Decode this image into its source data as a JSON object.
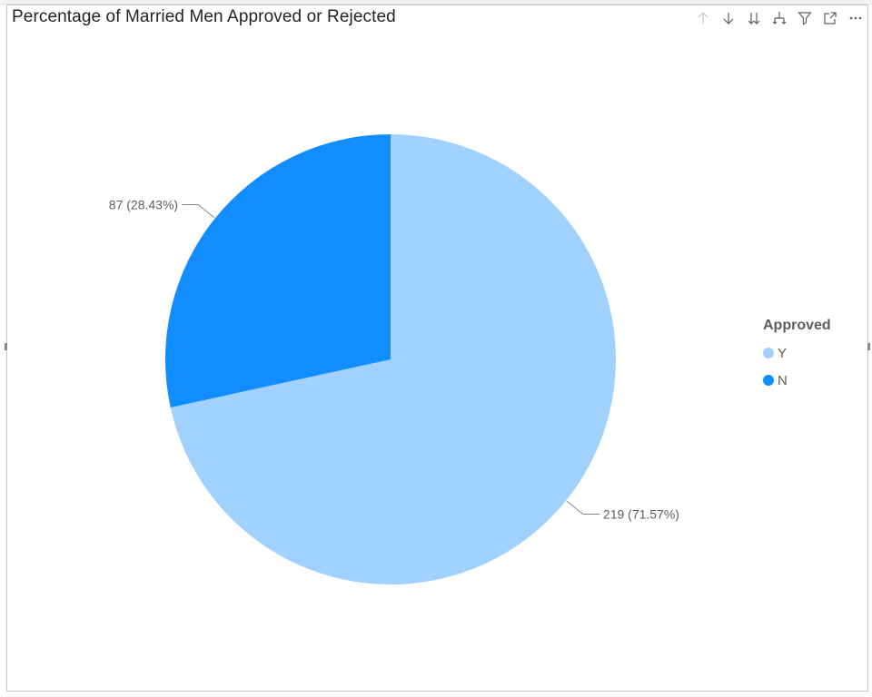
{
  "title": "Percentage of Married Men Approved or Rejected",
  "header_icons": [
    "drill-up-icon",
    "drill-down-icon",
    "expand-all-down-icon",
    "expand-hierarchy-icon",
    "filter-icon",
    "focus-mode-icon",
    "more-options-icon"
  ],
  "chart_data": {
    "type": "pie",
    "title": "Percentage of Married Men Approved or Rejected",
    "legend_title": "Approved",
    "legend_position": "right",
    "slices": [
      {
        "label": "Y",
        "value": 219,
        "percent": 71.57,
        "color": "#a0d1ff",
        "data_label": "219 (71.57%)"
      },
      {
        "label": "N",
        "value": 87,
        "percent": 28.43,
        "color": "#118dff",
        "data_label": "87 (28.43%)"
      }
    ]
  }
}
